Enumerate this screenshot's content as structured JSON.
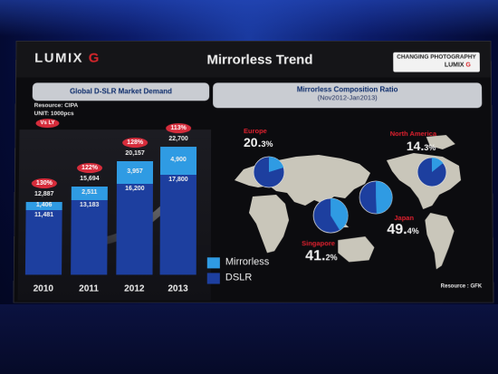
{
  "header": {
    "brand_lumix": "LUMIX",
    "brand_g": "G",
    "title": "Mirrorless Trend",
    "badge_line1": "CHANGING PHOTOGRAPHY",
    "badge_lumix": "LUMIX",
    "badge_g": "G"
  },
  "left_panel": {
    "heading": "Global D-SLR Market Demand",
    "resource": "Resource: CIPA",
    "unit": "UNIT: 1000pcs",
    "vs_label": "Vs LY"
  },
  "right_panel": {
    "heading": "Mirrorless Composition Ratio",
    "period": "(Nov2012-Jan2013)"
  },
  "legend": {
    "mirrorless": "Mirrorless",
    "dslr": "DSLR"
  },
  "source_note": "Resource : GFK",
  "colors": {
    "mirrorless": "#2f9be3",
    "dslr": "#1d3f9f",
    "accent_red": "#d62c3b"
  },
  "chart_data": {
    "type": "bar",
    "stacked": true,
    "categories": [
      "2010",
      "2011",
      "2012",
      "2013"
    ],
    "series": [
      {
        "name": "DSLR",
        "values": [
          11481,
          13183,
          16200,
          17800
        ]
      },
      {
        "name": "Mirrorless",
        "values": [
          1406,
          2511,
          3957,
          4900
        ]
      }
    ],
    "totals": [
      12887,
      15694,
      20157,
      22700
    ],
    "totals_labels": [
      "12,887",
      "15,694",
      "20,157",
      "22,700"
    ],
    "dslr_labels": [
      "11,481",
      "13,183",
      "16,200",
      "17,800"
    ],
    "mirrorless_labels": [
      "1,406",
      "2,511",
      "3,957",
      "4,900"
    ],
    "growth_labels": [
      "130%",
      "122%",
      "128%",
      "113%"
    ],
    "ylim": [
      0,
      24000
    ]
  },
  "regions": [
    {
      "name": "Europe",
      "value_main": "20.",
      "value_dec": "3%",
      "share": 0.203
    },
    {
      "name": "North America",
      "value_main": "14.",
      "value_dec": "3%",
      "share": 0.143
    },
    {
      "name": "Singapore",
      "value_main": "41.",
      "value_dec": "2%",
      "share": 0.412
    },
    {
      "name": "Japan",
      "value_main": "49.",
      "value_dec": "4%",
      "share": 0.494
    }
  ]
}
